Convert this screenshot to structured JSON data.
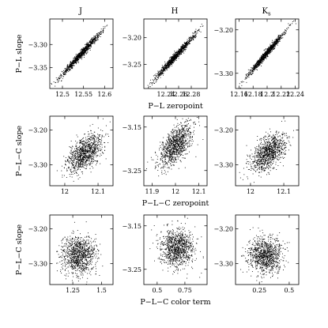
{
  "figure": {
    "column_titles": [
      "J",
      "H",
      "K"
    ],
    "column_title_subscripts": [
      "",
      "",
      "s"
    ]
  },
  "chart_data": [
    {
      "type": "scatter",
      "row": 0,
      "col": 0,
      "ylabel": "P−L slope",
      "xlabel": "",
      "xlim": [
        12.47,
        12.62
      ],
      "ylim": [
        -3.395,
        -3.245
      ],
      "xticks": [
        12.5,
        12.55,
        12.6
      ],
      "xtick_labels": [
        "12.5",
        "12.55",
        "12.6"
      ],
      "yticks": [
        -3.3,
        -3.35
      ],
      "ytick_labels": [
        "−3.30",
        "−3.35"
      ],
      "distribution": {
        "x_mean": 12.545,
        "x_sd": 0.024,
        "y_mean": -3.32,
        "y_sd": 0.024,
        "correlation": 0.985
      },
      "n_points": 1000
    },
    {
      "type": "scatter",
      "row": 0,
      "col": 1,
      "ylabel": "",
      "xlabel": "P−L zeropoint",
      "xlim": [
        12.205,
        12.305
      ],
      "ylim": [
        -3.295,
        -3.165
      ],
      "xticks": [
        12.24,
        12.26,
        12.28
      ],
      "xtick_labels": [
        "12.24",
        "12.26",
        "12.28"
      ],
      "yticks": [
        -3.2,
        -3.25
      ],
      "ytick_labels": [
        "−3.20",
        "−3.25"
      ],
      "distribution": {
        "x_mean": 12.255,
        "x_sd": 0.016,
        "y_mean": -3.235,
        "y_sd": 0.021,
        "correlation": 0.985
      },
      "n_points": 1000
    },
    {
      "type": "scatter",
      "row": 0,
      "col": 2,
      "ylabel": "",
      "xlabel": "",
      "xlim": [
        12.155,
        12.245
      ],
      "ylim": [
        -3.335,
        -3.175
      ],
      "xticks": [
        12.16,
        12.18,
        12.2,
        12.22,
        12.24
      ],
      "xtick_labels": [
        "12.16",
        "12.18",
        "12.2",
        "12.22",
        "12.24"
      ],
      "yticks": [
        -3.2,
        -3.25,
        -3.3
      ],
      "ytick_labels": [
        "−3.20",
        "",
        "−3.30"
      ],
      "distribution": {
        "x_mean": 12.199,
        "x_sd": 0.013,
        "y_mean": -3.255,
        "y_sd": 0.025,
        "correlation": 0.985
      },
      "n_points": 1000
    },
    {
      "type": "scatter",
      "row": 1,
      "col": 0,
      "ylabel": "P−L−C slope",
      "xlabel": "",
      "xlim": [
        11.955,
        12.145
      ],
      "ylim": [
        -3.36,
        -3.16
      ],
      "xticks": [
        12.0,
        12.1
      ],
      "xtick_labels": [
        "12",
        "12.1"
      ],
      "yticks": [
        -3.2,
        -3.3
      ],
      "ytick_labels": [
        "−3.20",
        "−3.30"
      ],
      "distribution": {
        "x_mean": 12.06,
        "x_sd": 0.026,
        "y_mean": -3.265,
        "y_sd": 0.028,
        "correlation": 0.55
      },
      "n_points": 1000
    },
    {
      "type": "scatter",
      "row": 1,
      "col": 1,
      "ylabel": "",
      "xlabel": "P−L−C zeropoint",
      "xlim": [
        11.865,
        12.135
      ],
      "ylim": [
        -3.285,
        -3.125
      ],
      "xticks": [
        11.9,
        12.0,
        12.1
      ],
      "xtick_labels": [
        "11.9",
        "12",
        "12.1"
      ],
      "yticks": [
        -3.15,
        -3.25
      ],
      "ytick_labels": [
        "−3.15",
        "−3.25"
      ],
      "distribution": {
        "x_mean": 12.0,
        "x_sd": 0.035,
        "y_mean": -3.192,
        "y_sd": 0.024,
        "correlation": 0.55
      },
      "n_points": 1000
    },
    {
      "type": "scatter",
      "row": 1,
      "col": 2,
      "ylabel": "",
      "xlabel": "",
      "xlim": [
        11.955,
        12.145
      ],
      "ylim": [
        -3.36,
        -3.16
      ],
      "xticks": [
        12.0,
        12.1
      ],
      "xtick_labels": [
        "12",
        "12.1"
      ],
      "yticks": [
        -3.2,
        -3.3
      ],
      "ytick_labels": [
        "−3.20",
        "−3.30"
      ],
      "distribution": {
        "x_mean": 12.055,
        "x_sd": 0.026,
        "y_mean": -3.265,
        "y_sd": 0.028,
        "correlation": 0.55
      },
      "n_points": 1000
    },
    {
      "type": "scatter",
      "row": 2,
      "col": 0,
      "ylabel": "P−L−C slope",
      "xlabel": "",
      "xlim": [
        1.05,
        1.6
      ],
      "ylim": [
        -3.36,
        -3.16
      ],
      "xticks": [
        1.25,
        1.5
      ],
      "xtick_labels": [
        "1.25",
        "1.5"
      ],
      "yticks": [
        -3.2,
        -3.3
      ],
      "ytick_labels": [
        "−3.20",
        "−3.30"
      ],
      "distribution": {
        "x_mean": 1.3,
        "x_sd": 0.075,
        "y_mean": -3.275,
        "y_sd": 0.027,
        "correlation": 0.0
      },
      "n_points": 1000
    },
    {
      "type": "scatter",
      "row": 2,
      "col": 1,
      "ylabel": "",
      "xlabel": "P−L−C color term",
      "xlim": [
        0.38,
        0.95
      ],
      "ylim": [
        -3.285,
        -3.125
      ],
      "xticks": [
        0.5,
        0.75
      ],
      "xtick_labels": [
        "0.5",
        "0.75"
      ],
      "yticks": [
        -3.15,
        -3.25
      ],
      "ytick_labels": [
        "−3.15",
        "−3.25"
      ],
      "distribution": {
        "x_mean": 0.68,
        "x_sd": 0.075,
        "y_mean": -3.2,
        "y_sd": 0.022,
        "correlation": 0.0
      },
      "n_points": 1000
    },
    {
      "type": "scatter",
      "row": 2,
      "col": 2,
      "ylabel": "",
      "xlabel": "",
      "xlim": [
        0.05,
        0.58
      ],
      "ylim": [
        -3.36,
        -3.16
      ],
      "xticks": [
        0.25,
        0.5
      ],
      "xtick_labels": [
        "0.25",
        "0.5"
      ],
      "yticks": [
        -3.2,
        -3.3
      ],
      "ytick_labels": [
        "−3.20",
        "−3.30"
      ],
      "distribution": {
        "x_mean": 0.3,
        "x_sd": 0.07,
        "y_mean": -3.275,
        "y_sd": 0.025,
        "correlation": 0.0
      },
      "n_points": 1000
    }
  ]
}
